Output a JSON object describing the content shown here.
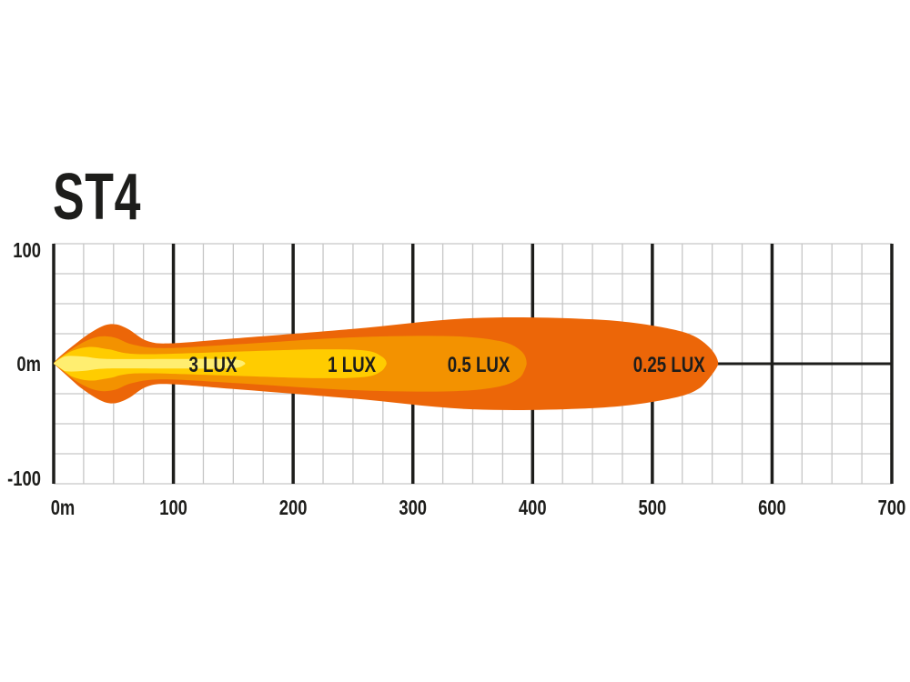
{
  "chart_data": {
    "type": "area",
    "title": "ST4",
    "xlabel": "",
    "ylabel": "",
    "xlim": [
      0,
      700
    ],
    "ylim": [
      -100,
      100
    ],
    "x_ticks": [
      "0m",
      "100",
      "200",
      "300",
      "400",
      "500",
      "600",
      "700"
    ],
    "y_ticks": [
      "100",
      "0m",
      "-100"
    ],
    "grid": true,
    "minor_grid_step_m": 25,
    "contours": [
      {
        "label": "0.25 LUX",
        "reach_m": 555,
        "color": "#EC6608",
        "profile": [
          [
            0,
            0
          ],
          [
            20,
            18
          ],
          [
            38,
            30
          ],
          [
            50,
            33
          ],
          [
            62,
            29
          ],
          [
            78,
            19
          ],
          [
            98,
            17
          ],
          [
            150,
            21
          ],
          [
            250,
            29
          ],
          [
            350,
            38
          ],
          [
            450,
            37
          ],
          [
            510,
            30
          ],
          [
            540,
            20
          ],
          [
            555,
            0
          ]
        ]
      },
      {
        "label": "0.5 LUX",
        "reach_m": 395,
        "color": "#F39200",
        "profile": [
          [
            0,
            0
          ],
          [
            18,
            14
          ],
          [
            35,
            22
          ],
          [
            50,
            22
          ],
          [
            66,
            16
          ],
          [
            92,
            13
          ],
          [
            150,
            16
          ],
          [
            250,
            22
          ],
          [
            330,
            23
          ],
          [
            372,
            19
          ],
          [
            390,
            11
          ],
          [
            395,
            0
          ]
        ]
      },
      {
        "label": "1 LUX",
        "reach_m": 278,
        "color": "#FFCC00",
        "profile": [
          [
            0,
            0
          ],
          [
            14,
            10
          ],
          [
            30,
            14
          ],
          [
            46,
            12
          ],
          [
            72,
            8
          ],
          [
            150,
            10
          ],
          [
            220,
            12
          ],
          [
            260,
            11
          ],
          [
            274,
            6
          ],
          [
            278,
            0
          ]
        ]
      },
      {
        "label": "3 LUX",
        "reach_m": 160,
        "color": "#FFEE70",
        "profile": [
          [
            0,
            0
          ],
          [
            9,
            6
          ],
          [
            25,
            6
          ],
          [
            45,
            4
          ],
          [
            100,
            4
          ],
          [
            140,
            4
          ],
          [
            155,
            3
          ],
          [
            160,
            0
          ]
        ]
      }
    ],
    "label_x_m": [
      514,
      355,
      249,
      133
    ]
  }
}
